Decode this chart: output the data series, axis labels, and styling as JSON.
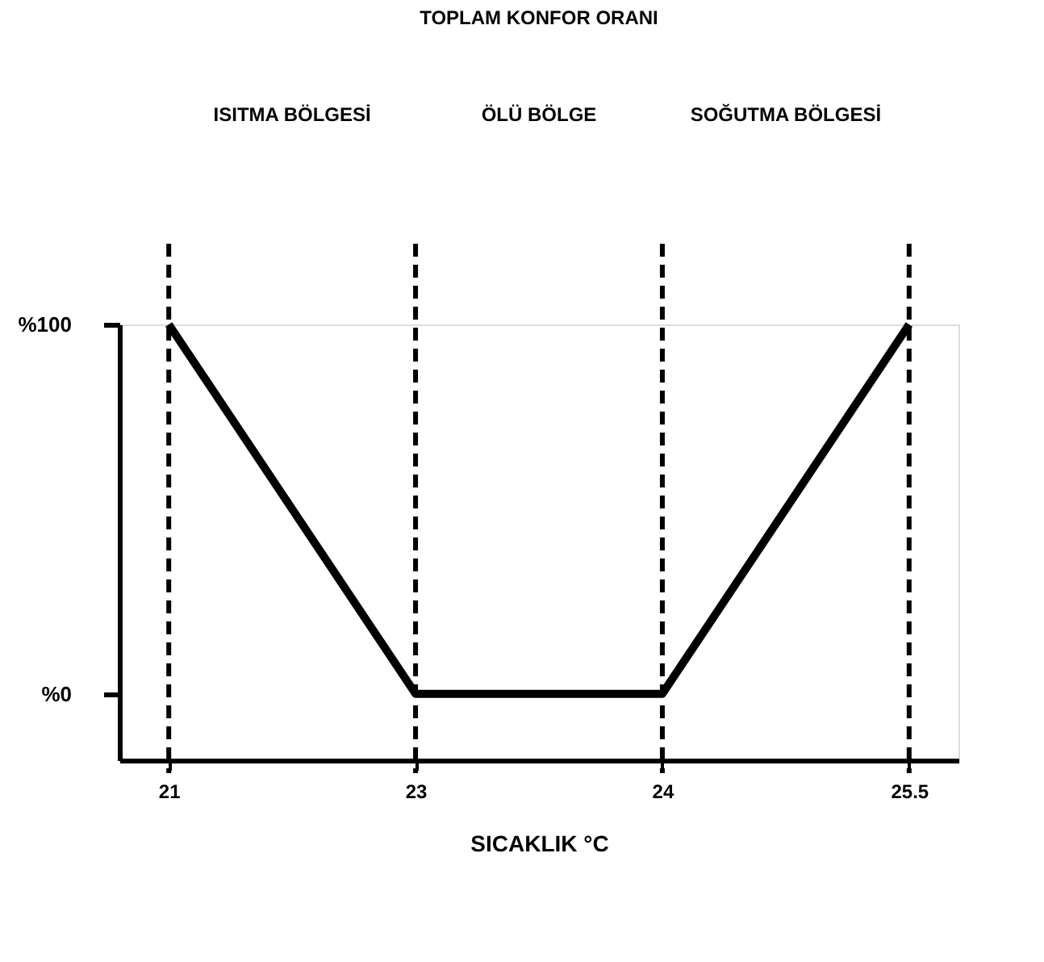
{
  "chart_data": {
    "type": "line",
    "xlabel": "SICAKLIK °C",
    "categories": [
      "21",
      "23",
      "24",
      "25.5"
    ],
    "values": [
      100,
      0,
      0,
      100
    ],
    "color": "#000000",
    "ylim": [
      -18,
      100
    ],
    "yticks": [
      {
        "value": 100,
        "label": "%100"
      },
      {
        "value": 0,
        "label": "%0"
      }
    ],
    "ref_lines": [
      {
        "axis": "x",
        "value": "21",
        "line_style": "dashed"
      },
      {
        "axis": "x",
        "value": "23",
        "line_style": "dashed"
      },
      {
        "axis": "x",
        "value": "24",
        "line_style": "dashed"
      },
      {
        "axis": "x",
        "value": "25.5",
        "line_style": "dashed"
      }
    ],
    "annotations": [
      "TOPLAM KONFOR ORANI",
      "ISITMA BÖLGESİ",
      "ÖLÜ BÖLGE",
      "SOĞUTMA BÖLGESİ"
    ],
    "grid": false,
    "marker": "none",
    "line_style": "solid"
  }
}
